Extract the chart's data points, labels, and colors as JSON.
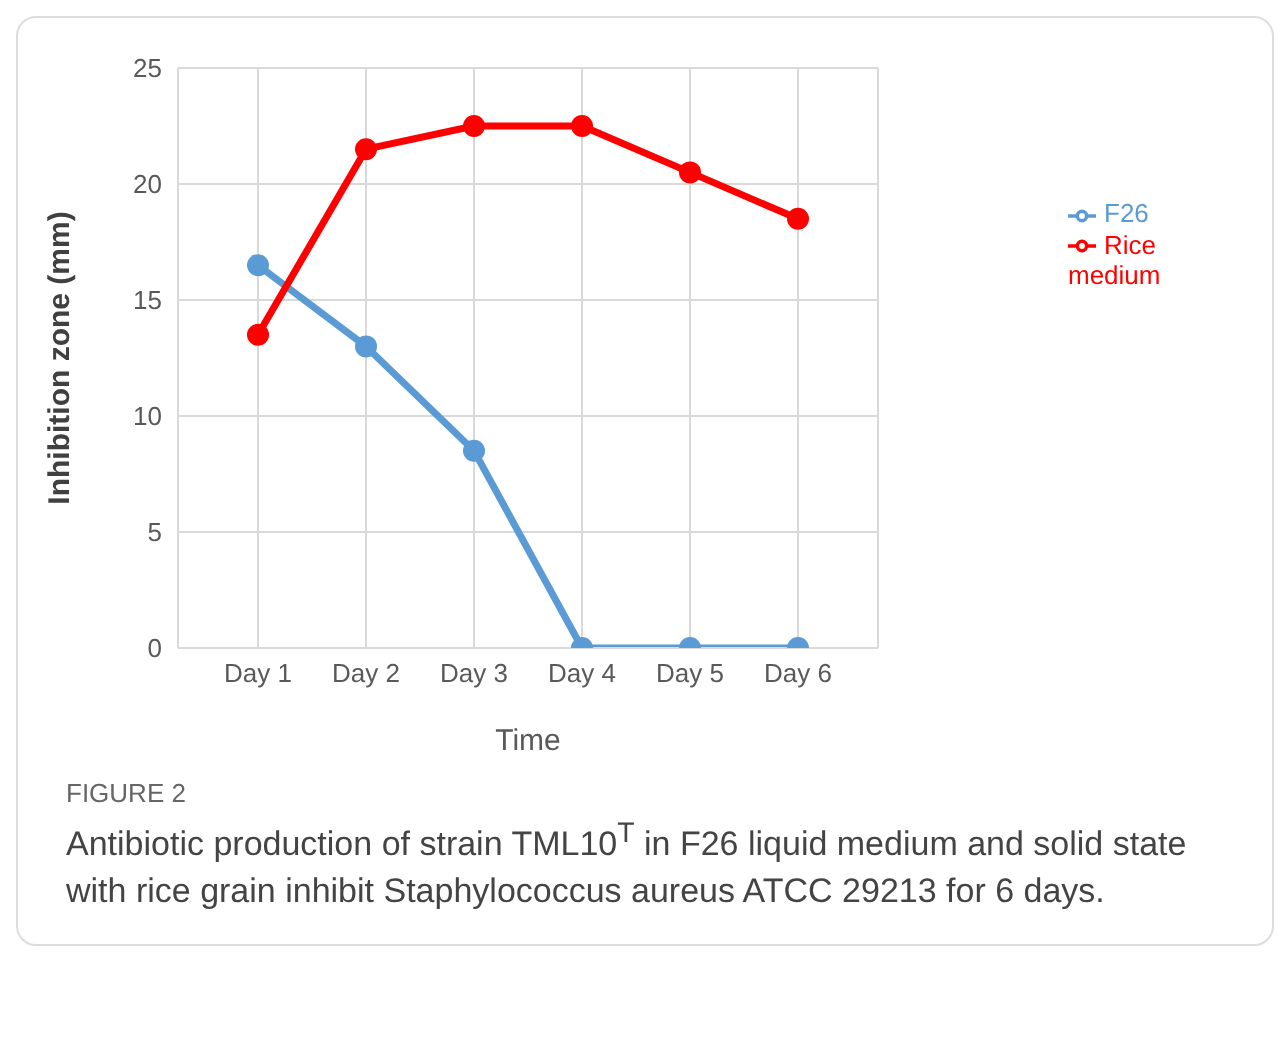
{
  "chart_data": {
    "type": "line",
    "xlabel": "Time",
    "ylabel": "Inhibition zone (mm)",
    "categories": [
      "Day 1",
      "Day 2",
      "Day 3",
      "Day 4",
      "Day 5",
      "Day 6"
    ],
    "series": [
      {
        "name": "F26",
        "color": "#5b9bd5",
        "values": [
          16.5,
          13,
          8.5,
          0,
          0,
          0
        ]
      },
      {
        "name": "Rice medium",
        "color": "#ff0000",
        "values": [
          13.5,
          21.5,
          22.5,
          22.5,
          20.5,
          18.5
        ]
      }
    ],
    "ylim": [
      0,
      25
    ],
    "yticks": [
      0,
      5,
      10,
      15,
      20,
      25
    ],
    "grid": true,
    "legend": "right",
    "marker": "circle",
    "annotations": [
      "FIGURE 2",
      "Antibiotic production of strain TML10$^{T}$ in F26 liquid medium and solid state with rice grain inhibit Staphylococcus aureus ATCC 29213 for 6 days."
    ]
  }
}
